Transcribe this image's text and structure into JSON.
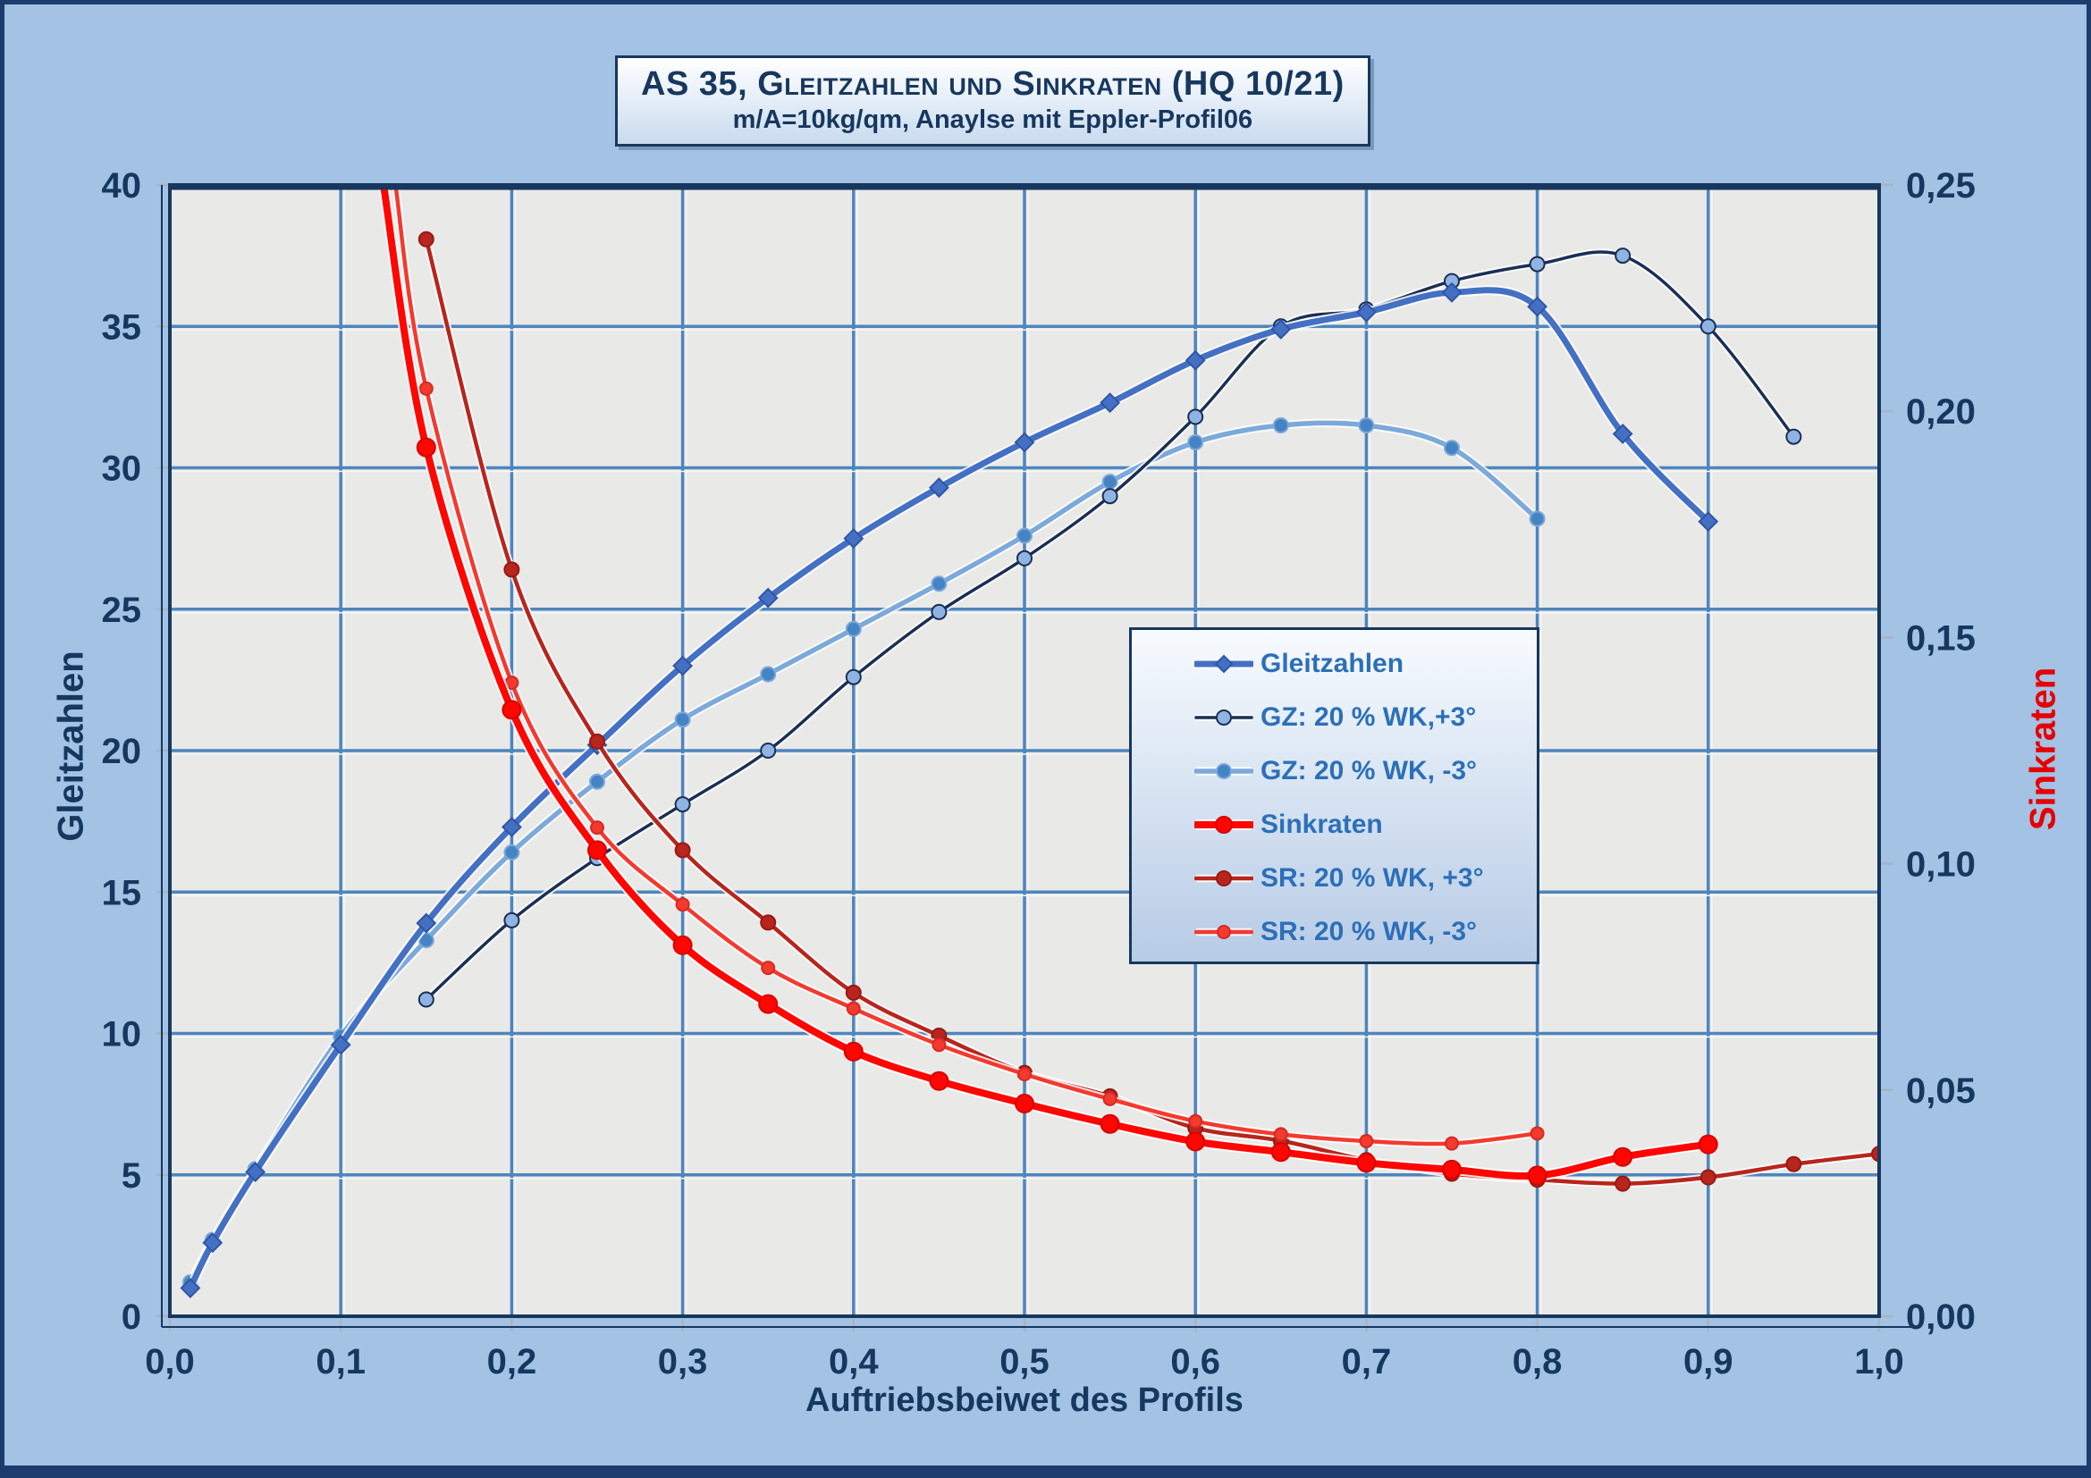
{
  "colors": {
    "page_background": "#a3c2e4",
    "plot_background": "#e9e9e7",
    "gridline": "#4c86be",
    "gridline_highlight": "#f6f6f4",
    "axis_frame": "#17375e",
    "tick_mark": "#a9b4bf",
    "text_navy": "#17375e",
    "legend_text": "#2d6fb8",
    "right_axis_title": "#e60000",
    "outer_frame": "#1d3c6e"
  },
  "chart_data": {
    "type": "line",
    "title": "AS 35, Gleitzahlen und Sinkraten (HQ 10/21)",
    "subtitle": "m/A=10kg/qm, Anaylse mit Eppler-Profil06",
    "xlabel": "Auftriebsbeiwet des Profils",
    "ylabel_left": "Gleitzahlen",
    "ylabel_right": "Sinkraten",
    "xlim": [
      0,
      1
    ],
    "ylim_left": [
      0,
      40
    ],
    "ylim_right": [
      0,
      0.25
    ],
    "grid": "both",
    "legend_position": "center-right",
    "x_tick_values": [
      0,
      0.1,
      0.2,
      0.3,
      0.4,
      0.5,
      0.6,
      0.7,
      0.8,
      0.9,
      1.0
    ],
    "x_tick_labels": [
      "0,0",
      "0,1",
      "0,2",
      "0,3",
      "0,4",
      "0,5",
      "0,6",
      "0,7",
      "0,8",
      "0,9",
      "1,0"
    ],
    "y_tick_values_left": [
      0,
      5,
      10,
      15,
      20,
      25,
      30,
      35,
      40
    ],
    "y_tick_labels_left": [
      "0",
      "5",
      "10",
      "15",
      "20",
      "25",
      "30",
      "35",
      "40"
    ],
    "y_tick_values_right": [
      0,
      0.05,
      0.1,
      0.15,
      0.2,
      0.25
    ],
    "y_tick_labels_right": [
      "0,00",
      "0,05",
      "0,10",
      "0,15",
      "0,20",
      "0,25"
    ],
    "series": [
      {
        "id": "gleitzahlen",
        "name": "Gleitzahlen",
        "axis": "left",
        "color": "#4470c4",
        "width": 7,
        "marker": "diamond",
        "marker_size": 10,
        "marker_fill": "#4470c4",
        "marker_stroke": "#2f55a4",
        "x": [
          0.012,
          0.025,
          0.05,
          0.1,
          0.15,
          0.2,
          0.25,
          0.3,
          0.35,
          0.4,
          0.45,
          0.5,
          0.55,
          0.6,
          0.65,
          0.7,
          0.75,
          0.8,
          0.85,
          0.9
        ],
        "y": [
          1.0,
          2.6,
          5.1,
          9.6,
          13.9,
          17.3,
          20.2,
          23.0,
          25.4,
          27.5,
          29.3,
          30.9,
          32.3,
          33.8,
          34.9,
          35.5,
          36.2,
          35.7,
          31.2,
          28.1
        ]
      },
      {
        "id": "gz-20wk-plus3",
        "name": "GZ: 20 % WK,+3°",
        "axis": "left",
        "color": "#1b2f55",
        "width": 3.5,
        "marker": "circle",
        "marker_size": 8,
        "marker_fill": "#8fb4e3",
        "marker_stroke": "#1b2f55",
        "x": [
          0.15,
          0.2,
          0.25,
          0.3,
          0.35,
          0.4,
          0.45,
          0.5,
          0.55,
          0.6,
          0.65,
          0.7,
          0.75,
          0.8,
          0.85,
          0.9,
          0.95
        ],
        "y": [
          11.2,
          14.0,
          16.2,
          18.1,
          20.0,
          22.6,
          24.9,
          26.8,
          29.0,
          31.8,
          35.0,
          35.6,
          36.6,
          37.2,
          37.5,
          35.0,
          31.1
        ]
      },
      {
        "id": "gz-20wk-minus3",
        "name": "GZ: 20 % WK, -3°",
        "axis": "left",
        "color": "#7ca9da",
        "width": 5.5,
        "marker": "circle",
        "marker_size": 8,
        "marker_fill": "#4584c4",
        "marker_stroke": "#7ca9da",
        "x": [
          0.012,
          0.025,
          0.05,
          0.1,
          0.15,
          0.2,
          0.25,
          0.3,
          0.35,
          0.4,
          0.45,
          0.5,
          0.55,
          0.6,
          0.65,
          0.7,
          0.75,
          0.8
        ],
        "y": [
          1.2,
          2.7,
          5.2,
          9.9,
          13.3,
          16.4,
          18.9,
          21.1,
          22.7,
          24.3,
          25.9,
          27.6,
          29.5,
          30.9,
          31.5,
          31.5,
          30.7,
          28.2
        ]
      },
      {
        "id": "sinkraten",
        "name": "Sinkraten",
        "axis": "right",
        "color": "#fe0602",
        "width": 8,
        "marker": "circle",
        "marker_size": 10,
        "marker_fill": "#fe0602",
        "marker_stroke": "#d40400",
        "entry": [
          [
            0.125,
            0.25
          ]
        ],
        "x": [
          0.15,
          0.2,
          0.25,
          0.3,
          0.35,
          0.4,
          0.45,
          0.5,
          0.55,
          0.6,
          0.65,
          0.7,
          0.75,
          0.8,
          0.85,
          0.9
        ],
        "y": [
          0.192,
          0.134,
          0.103,
          0.082,
          0.069,
          0.0585,
          0.052,
          0.047,
          0.0425,
          0.0386,
          0.0363,
          0.0339,
          0.0324,
          0.0311,
          0.0352,
          0.038
        ]
      },
      {
        "id": "sr-20wk-plus3",
        "name": "SR: 20 % WK, +3°",
        "axis": "right",
        "color": "#b8251d",
        "width": 4.5,
        "marker": "circle",
        "marker_size": 8,
        "marker_fill": "#b8251d",
        "marker_stroke": "#941a14",
        "x": [
          0.15,
          0.2,
          0.25,
          0.3,
          0.35,
          0.4,
          0.45,
          0.5,
          0.55,
          0.6,
          0.65,
          0.7,
          0.75,
          0.8,
          0.85,
          0.9,
          0.95,
          1.0
        ],
        "y": [
          0.238,
          0.165,
          0.127,
          0.103,
          0.087,
          0.0715,
          0.062,
          0.0538,
          0.0486,
          0.0416,
          0.0388,
          0.0345,
          0.0315,
          0.0302,
          0.0293,
          0.0307,
          0.0336,
          0.0359
        ]
      },
      {
        "id": "sr-20wk-minus3",
        "name": "SR: 20 % WK, -3°",
        "axis": "right",
        "color": "#f4392e",
        "width": 4.5,
        "marker": "circle",
        "marker_size": 7,
        "marker_fill": "#f4392e",
        "marker_stroke": "#d42a24",
        "entry": [
          [
            0.132,
            0.25
          ]
        ],
        "x": [
          0.15,
          0.2,
          0.25,
          0.3,
          0.35,
          0.4,
          0.45,
          0.5,
          0.55,
          0.6,
          0.65,
          0.7,
          0.75,
          0.8
        ],
        "y": [
          0.205,
          0.14,
          0.108,
          0.091,
          0.077,
          0.068,
          0.06,
          0.0535,
          0.048,
          0.0431,
          0.0402,
          0.0387,
          0.0382,
          0.0404
        ]
      }
    ]
  }
}
